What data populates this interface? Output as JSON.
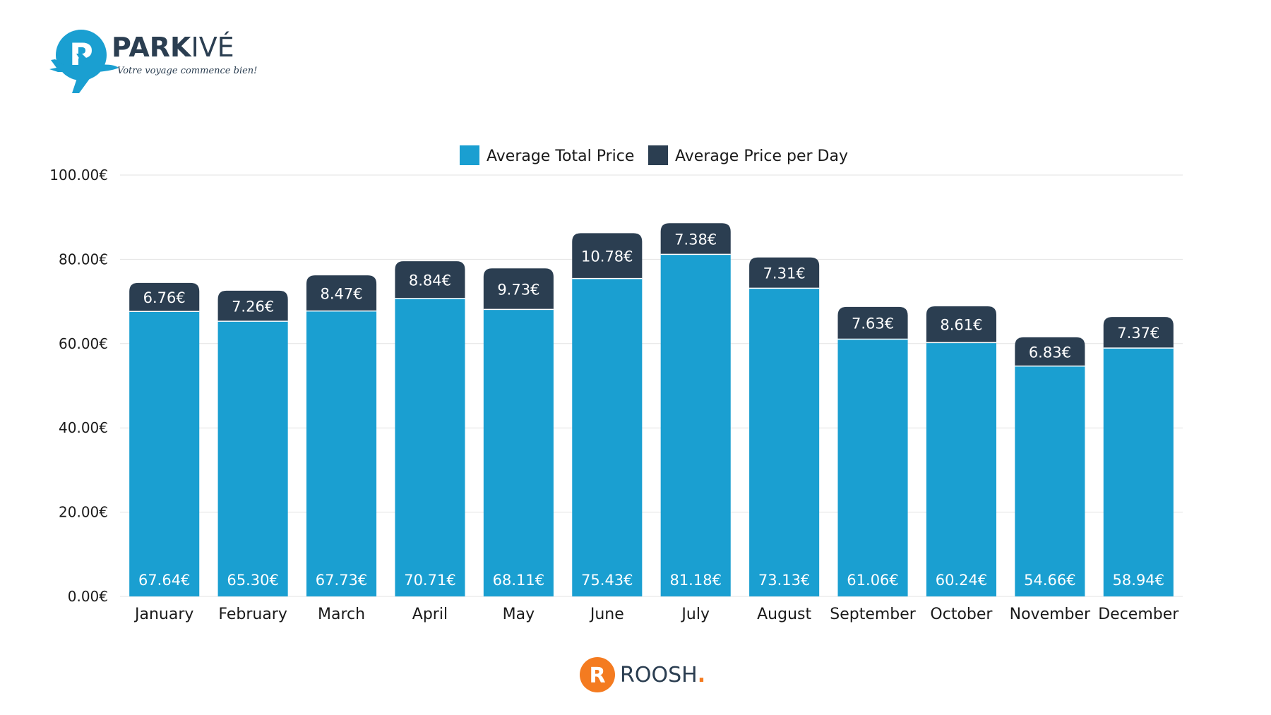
{
  "brand": {
    "name_prefix": "PARK",
    "name_suffix": "IVÉ",
    "tagline": "Votre voyage commence bien!",
    "logo_letter": "P",
    "color_primary": "#1a9fd1",
    "color_dark": "#2b3e51"
  },
  "footer": {
    "brand": "ROOSH",
    "dot": ".",
    "logo_letter": "R",
    "color_accent": "#f47b20"
  },
  "chart_data": {
    "type": "bar",
    "stacked": true,
    "categories": [
      "January",
      "February",
      "March",
      "April",
      "May",
      "June",
      "July",
      "August",
      "September",
      "October",
      "November",
      "December"
    ],
    "series": [
      {
        "name": "Average Total Price",
        "color": "#1a9fd1",
        "values": [
          67.64,
          65.3,
          67.73,
          70.71,
          68.11,
          75.43,
          81.18,
          73.13,
          61.06,
          60.24,
          54.66,
          58.94
        ],
        "labels": [
          "67.64€",
          "65.30€",
          "67.73€",
          "70.71€",
          "68.11€",
          "75.43€",
          "81.18€",
          "73.13€",
          "61.06€",
          "60.24€",
          "54.66€",
          "58.94€"
        ]
      },
      {
        "name": "Average Price per Day",
        "color": "#2b3e51",
        "values": [
          6.76,
          7.26,
          8.47,
          8.84,
          9.73,
          10.78,
          7.38,
          7.31,
          7.63,
          8.61,
          6.83,
          7.37
        ],
        "labels": [
          "6.76€",
          "7.26€",
          "8.47€",
          "8.84€",
          "9.73€",
          "10.78€",
          "7.38€",
          "7.31€",
          "7.63€",
          "8.61€",
          "6.83€",
          "7.37€"
        ]
      }
    ],
    "ylim": [
      0,
      100
    ],
    "yticks": [
      0,
      20,
      40,
      60,
      80,
      100
    ],
    "ytick_labels": [
      "0.00€",
      "20.00€",
      "40.00€",
      "60.00€",
      "80.00€",
      "100.00€"
    ],
    "grid": true,
    "legend_position": "top-center"
  }
}
